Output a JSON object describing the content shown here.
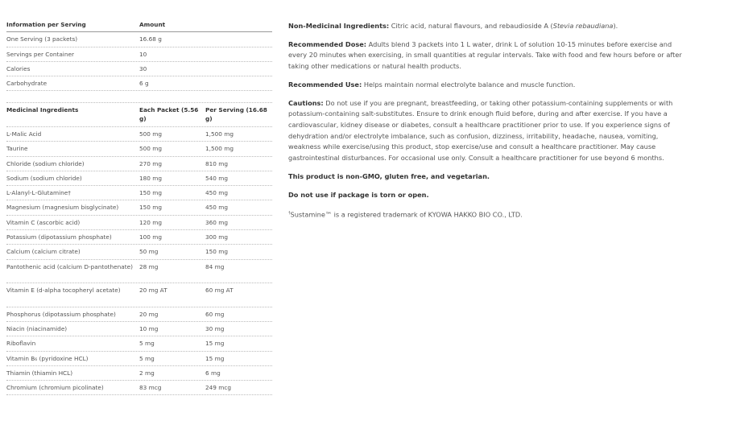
{
  "info_table": {
    "headers": [
      "Information per Serving",
      "Amount"
    ],
    "rows": [
      [
        "One Serving (3 packets)",
        "16.68 g"
      ],
      [
        "Servings per Container",
        "10"
      ],
      [
        "Calories",
        "30"
      ],
      [
        "Carbohydrate",
        "6 g"
      ]
    ]
  },
  "medicinal_table": {
    "headers": [
      "Medicinal Ingredients",
      "Each Packet (5.56 g)",
      "Per Serving (16.68 g)"
    ],
    "rows": [
      [
        "L-Malic Acid",
        "500 mg",
        "1,500 mg"
      ],
      [
        "Taurine",
        "500 mg",
        "1,500 mg"
      ],
      [
        "Chloride (sodium chloride)",
        "270 mg",
        "810 mg"
      ],
      [
        "Sodium (sodium chloride)",
        "180 mg",
        "540 mg"
      ],
      [
        "L-Alanyl-L-Glutamine†",
        "150 mg",
        "450 mg"
      ],
      [
        "Magnesium (magnesium bisglycinate)",
        "150 mg",
        "450 mg"
      ],
      [
        "Vitamin C (ascorbic acid)",
        "120 mg",
        "360 mg"
      ],
      [
        "Potassium (dipotassium phosphate)",
        "100 mg",
        "300 mg"
      ],
      [
        "Calcium (calcium citrate)",
        "50 mg",
        "150 mg"
      ],
      [
        "Pantothenic acid (calcium D-pantothenate)",
        "28 mg",
        "84 mg"
      ],
      [
        "Vitamin E (d-alpha tocopheryl acetate)",
        "20 mg AT",
        "60 mg AT"
      ],
      [
        "Phosphorus (dipotassium phosphate)",
        "20 mg",
        "60 mg"
      ],
      [
        "Niacin (niacinamide)",
        "10 mg",
        "30 mg"
      ],
      [
        "Riboflavin",
        "5 mg",
        "15 mg"
      ],
      [
        "Vitamin B₆ (pyridoxine HCL)",
        "5 mg",
        "15 mg"
      ],
      [
        "Thiamin (thiamin HCL)",
        "2 mg",
        "6 mg"
      ],
      [
        "Chromium (chromium picolinate)",
        "83 mcg",
        "249 mcg"
      ]
    ]
  },
  "details": {
    "non_medicinal_label": "Non-Medicinal Ingredients:",
    "non_medicinal_text": " Citric acid, natural flavours, and rebaudioside A (",
    "non_medicinal_italic": "Stevia rebaudiana",
    "non_medicinal_end": ").",
    "dose_label": "Recommended Dose:",
    "dose_text": " Adults blend 3 packets into 1 L water, drink L of solution 10-15 minutes before exercise and every 20 minutes when exercising, in small quantities at regular intervals. Take with food and few hours before or after taking other medications or natural health products.",
    "use_label": "Recommended Use:",
    "use_text": " Helps maintain normal electrolyte balance and muscle function.",
    "cautions_label": "Cautions:",
    "cautions_text": " Do not use if you are pregnant, breastfeeding, or taking other potassium-containing supplements or with potassium-containing salt-substitutes. Ensure to drink enough fluid before, during and after exercise. If you have a cardiovascular, kidney disease or diabetes, consult a healthcare practitioner prior to use. If you experience signs of dehydration and/or electrolyte imbalance, such as confusion, dizziness, irritability, headache, nausea, vomiting, weakness while exercise/using this product, stop exercise/use and consult a healthcare practitioner. May cause gastrointestinal disturbances. For occasional use only. Consult a healthcare practitioner for use beyond 6 months.",
    "non_gmo": "This product is non-GMO, gluten free, and vegetarian.",
    "torn": "Do not use if package is torn or open.",
    "trademark_mark": "†",
    "trademark_text": "Sustamine™ is a registered trademark of KYOWA HAKKO BIO CO., LTD."
  }
}
